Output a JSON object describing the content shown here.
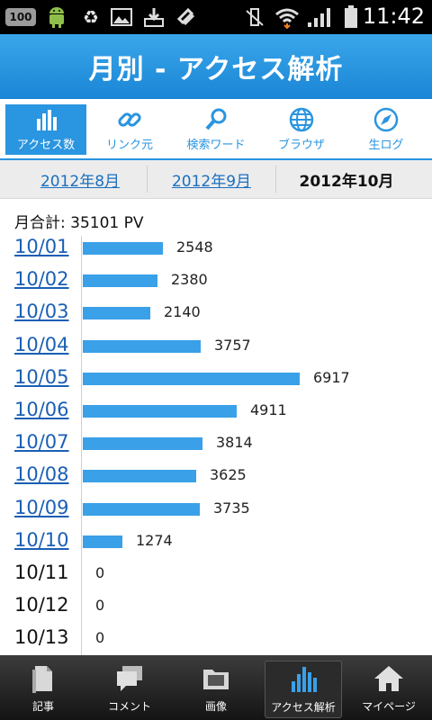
{
  "status_bar": {
    "battery_level": "100",
    "time": "11:42",
    "icons": [
      "battery-100-icon",
      "android-icon",
      "recycle-icon",
      "image-icon",
      "download-icon",
      "usb-icon",
      "vibrate-icon",
      "wifi-icon",
      "signal-icon",
      "battery-icon"
    ]
  },
  "header": {
    "title": "月別 - アクセス解析"
  },
  "tabs": [
    {
      "label": "アクセス数",
      "icon": "bar-chart-icon",
      "active": true
    },
    {
      "label": "リンク元",
      "icon": "link-icon",
      "active": false
    },
    {
      "label": "検索ワード",
      "icon": "search-icon",
      "active": false
    },
    {
      "label": "ブラウザ",
      "icon": "globe-icon",
      "active": false
    },
    {
      "label": "生ログ",
      "icon": "compass-icon",
      "active": false
    }
  ],
  "months": [
    {
      "label": "2012年8月",
      "current": false
    },
    {
      "label": "2012年9月",
      "current": false
    },
    {
      "label": "2012年10月",
      "current": true
    }
  ],
  "total": "月合計: 35101 PV",
  "chart_data": {
    "type": "bar",
    "orientation": "horizontal",
    "categories": [
      "10/01",
      "10/02",
      "10/03",
      "10/04",
      "10/05",
      "10/06",
      "10/07",
      "10/08",
      "10/09",
      "10/10",
      "10/11",
      "10/12",
      "10/13"
    ],
    "values": [
      2548,
      2380,
      2140,
      3757,
      6917,
      4911,
      3814,
      3625,
      3735,
      1274,
      0,
      0,
      0
    ],
    "value_labels": [
      "2548",
      "2380",
      "2140",
      "3757",
      "6917",
      "4911",
      "3814",
      "3625",
      "3735",
      "1274",
      "0",
      "0",
      "0"
    ],
    "linked": [
      true,
      true,
      true,
      true,
      true,
      true,
      true,
      true,
      true,
      true,
      false,
      false,
      false
    ],
    "xmax": 6917,
    "color": "#3aa0e8"
  },
  "bottom_nav": [
    {
      "label": "記事",
      "icon": "document-icon",
      "active": false
    },
    {
      "label": "コメント",
      "icon": "comment-icon",
      "active": false
    },
    {
      "label": "画像",
      "icon": "folder-image-icon",
      "active": false
    },
    {
      "label": "アクセス解析",
      "icon": "bar-chart-icon",
      "active": true
    },
    {
      "label": "マイページ",
      "icon": "home-icon",
      "active": false
    }
  ],
  "colors": {
    "accent": "#2a95e0",
    "bar": "#3aa0e8",
    "link": "#1a5fb5"
  }
}
